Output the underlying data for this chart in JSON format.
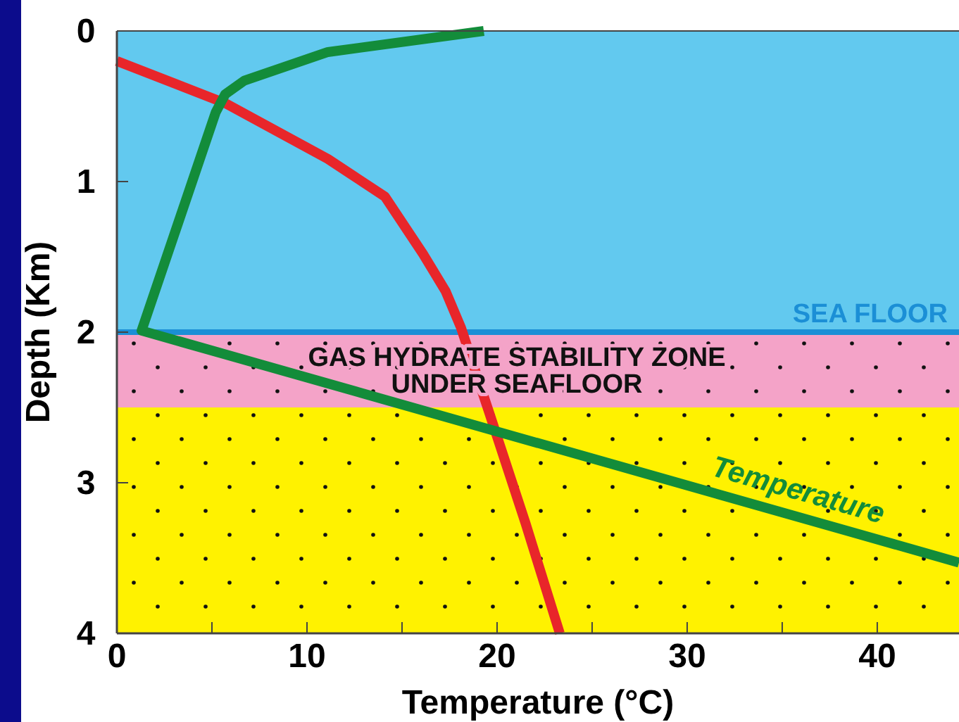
{
  "chart_data": {
    "type": "line",
    "xlabel": "Temperature (°C)",
    "ylabel": "Depth (Km)",
    "xlim": [
      0,
      44.3
    ],
    "ylim": [
      4,
      0
    ],
    "xticks": [
      0,
      {
        "value": 5,
        "label": null
      },
      10,
      {
        "value": 15,
        "label": null
      },
      20,
      {
        "value": 25,
        "label": null
      },
      30,
      {
        "value": 35,
        "label": null
      },
      40
    ],
    "yticks": [
      0,
      1,
      2,
      3,
      4
    ],
    "series": [
      {
        "color": "#e8262a",
        "x": [
          0,
          5.7,
          11.1,
          14.1,
          16.1,
          17.3,
          18.1,
          19.6,
          21.5,
          23.3
        ],
        "values": [
          0.2,
          0.48,
          0.85,
          1.1,
          1.48,
          1.73,
          1.97,
          2.54,
          3.27,
          4.0
        ]
      },
      {
        "name": "Temperature",
        "color": "#138c3a",
        "x": [
          19.3,
          11.1,
          6.7,
          5.7,
          5.2,
          1.3,
          44.3
        ],
        "values": [
          0,
          0.14,
          0.33,
          0.42,
          0.54,
          1.99,
          3.53
        ]
      }
    ],
    "bands": [
      {
        "axis": "y",
        "from": 0,
        "to": 2,
        "color": "#62c9ef"
      },
      {
        "axis": "y",
        "from": 2,
        "to": 2.5,
        "color": "#f4a3c8",
        "label": "GAS HYDRATE STABILITY ZONE\nUNDER SEAFLOOR"
      },
      {
        "axis": "y",
        "from": 2.5,
        "to": 4,
        "color": "#fff200"
      }
    ],
    "ref_lines": [
      {
        "axis": "y",
        "value": 2,
        "label": "SEA FLOOR",
        "color": "#1b8fd6"
      }
    ],
    "line_style": "solid",
    "marker": "none",
    "grid": false
  }
}
